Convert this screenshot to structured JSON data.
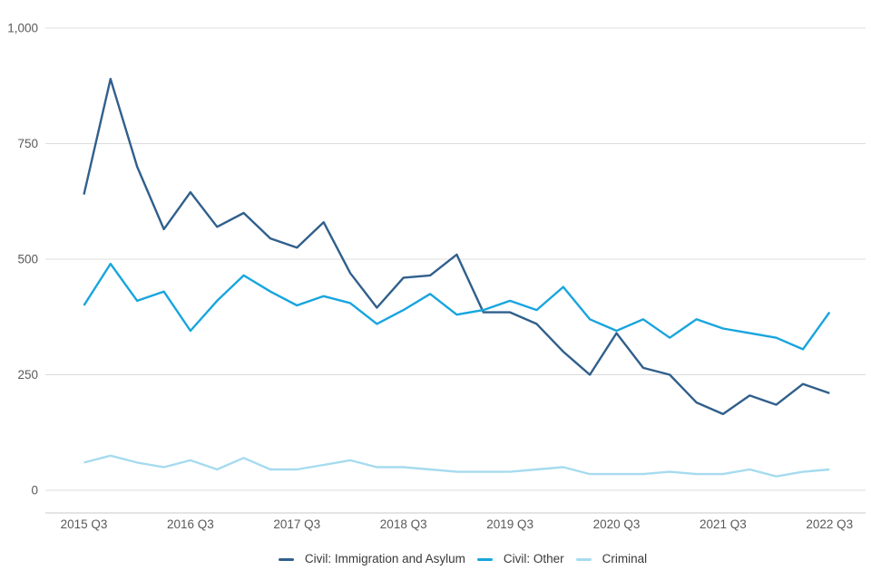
{
  "chart_data": {
    "type": "line",
    "title": "",
    "xlabel": "",
    "ylabel": "",
    "ylim": [
      0,
      1000
    ],
    "grid": "horizontal",
    "legend_position": "bottom",
    "categories": [
      "2015 Q3",
      "2015 Q4",
      "2016 Q1",
      "2016 Q2",
      "2016 Q3",
      "2016 Q4",
      "2017 Q1",
      "2017 Q2",
      "2017 Q3",
      "2017 Q4",
      "2018 Q1",
      "2018 Q2",
      "2018 Q3",
      "2018 Q4",
      "2019 Q1",
      "2019 Q2",
      "2019 Q3",
      "2019 Q4",
      "2020 Q1",
      "2020 Q2",
      "2020 Q3",
      "2020 Q4",
      "2021 Q1",
      "2021 Q2",
      "2021 Q3",
      "2021 Q4",
      "2022 Q1",
      "2022 Q2",
      "2022 Q3"
    ],
    "x_tick_labels": [
      "2015 Q3",
      "2016 Q3",
      "2017 Q3",
      "2018 Q3",
      "2019 Q3",
      "2020 Q3",
      "2021 Q3",
      "2022 Q3"
    ],
    "x_tick_indices": [
      0,
      4,
      8,
      12,
      16,
      20,
      24,
      28
    ],
    "y_ticks": [
      {
        "value": 0,
        "label": "0"
      },
      {
        "value": 250,
        "label": "250"
      },
      {
        "value": 500,
        "label": "500"
      },
      {
        "value": 750,
        "label": "750"
      },
      {
        "value": 1000,
        "label": "1,000"
      }
    ],
    "series": [
      {
        "name": "Civil: Immigration and Asylum",
        "color": "#305F8C",
        "values": [
          640,
          890,
          700,
          565,
          645,
          570,
          600,
          545,
          525,
          580,
          470,
          395,
          460,
          465,
          510,
          385,
          385,
          360,
          300,
          250,
          340,
          265,
          250,
          190,
          165,
          205,
          185,
          230,
          210
        ]
      },
      {
        "name": "Civil: Other",
        "color": "#17A5DE",
        "values": [
          400,
          490,
          410,
          430,
          345,
          410,
          465,
          430,
          400,
          420,
          405,
          360,
          390,
          425,
          380,
          390,
          410,
          390,
          440,
          370,
          345,
          370,
          330,
          370,
          350,
          340,
          330,
          305,
          385
        ]
      },
      {
        "name": "Criminal",
        "color": "#A6DBEF",
        "values": [
          60,
          75,
          60,
          50,
          65,
          45,
          70,
          45,
          45,
          55,
          65,
          50,
          50,
          45,
          40,
          40,
          40,
          45,
          50,
          35,
          35,
          35,
          40,
          35,
          35,
          45,
          30,
          40,
          45
        ]
      }
    ]
  },
  "colors": {
    "background": "#FFFFFF",
    "gridline": "#DCDCDC",
    "axis_line": "#C9C9C9",
    "tick_label": "#595959",
    "legend_text": "#3A3A3A"
  }
}
